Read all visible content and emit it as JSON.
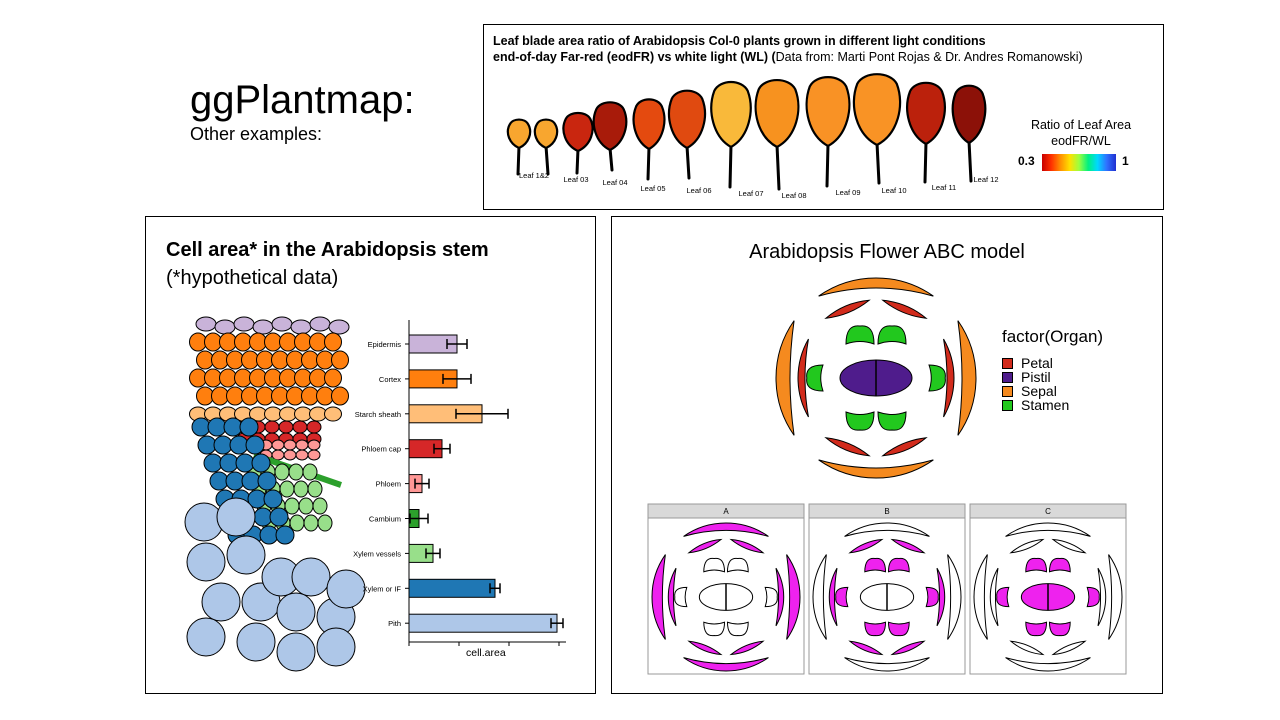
{
  "slide": {
    "title": "ggPlantmap:",
    "subtitle": "Other examples:"
  },
  "leaf_panel": {
    "title_line1": "Leaf blade area ratio of Arabidopsis Col-0 plants grown in different light conditions",
    "title_line2_bold": "end-of-day Far-red (eodFR) vs white light (WL) (",
    "title_line2_normal": "Data from: Marti Pont Rojas & Dr. Andres Romanowski)",
    "legend_title_line1": "Ratio of Leaf Area",
    "legend_title_line2": "eodFR/WL",
    "legend_min": "0.3",
    "legend_max": "1",
    "leaves": [
      {
        "label": "Leaf 1&2",
        "color": "#f8a62f"
      },
      {
        "label": "Leaf 03",
        "color": "#c9260f"
      },
      {
        "label": "Leaf 04",
        "color": "#a81b0a"
      },
      {
        "label": "Leaf 05",
        "color": "#e44a0f"
      },
      {
        "label": "Leaf 06",
        "color": "#e04a10"
      },
      {
        "label": "Leaf 07",
        "color": "#f9b93a"
      },
      {
        "label": "Leaf 08",
        "color": "#f7921f"
      },
      {
        "label": "Leaf 09",
        "color": "#f99225"
      },
      {
        "label": "Leaf 10",
        "color": "#f99325"
      },
      {
        "label": "Leaf 11",
        "color": "#bb210c"
      },
      {
        "label": "Leaf 12",
        "color": "#8c1108"
      }
    ]
  },
  "stem_panel": {
    "title": "Cell area* in the Arabidopsis stem",
    "subtitle": "(*hypothetical data)",
    "xlabel": "cell.area"
  },
  "flower_panel": {
    "title": "Arabidopsis Flower ABC model",
    "legend_title": "factor(Organ)",
    "legend_items": [
      {
        "label": "Petal",
        "color": "#d22b1c"
      },
      {
        "label": "Pistil",
        "color": "#4f1c8c"
      },
      {
        "label": "Sepal",
        "color": "#f58a1f"
      },
      {
        "label": "Stamen",
        "color": "#22c81e"
      }
    ],
    "facets": [
      "A",
      "B",
      "C"
    ]
  },
  "chart_data": {
    "type": "bar",
    "xlabel": "cell.area",
    "categories": [
      "Epidermis",
      "Cortex",
      "Starch sheath",
      "Phloem cap",
      "Phloem",
      "Cambium",
      "Xylem vessels",
      "Xylem or IF",
      "Pith"
    ],
    "values": [
      48,
      48,
      73,
      33,
      13,
      10,
      24,
      86,
      148
    ],
    "errors": [
      10,
      14,
      26,
      8,
      7,
      9,
      7,
      5,
      6
    ],
    "colors": [
      "#c9b3d9",
      "#ff7f0e",
      "#ffbe78",
      "#d62728",
      "#ff9896",
      "#2ca02c",
      "#98df8a",
      "#1f77b4",
      "#aec7e8"
    ]
  }
}
